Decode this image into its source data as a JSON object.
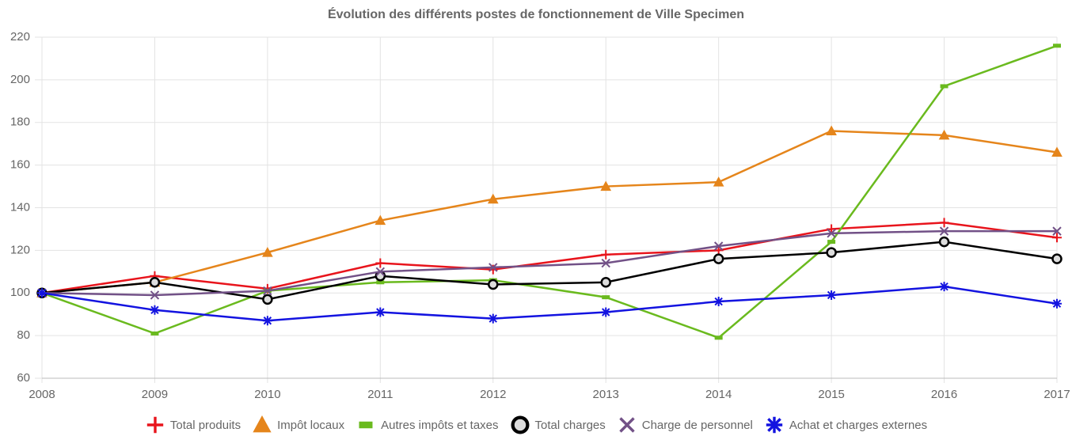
{
  "chart_data": {
    "type": "line",
    "title": "Évolution des différents postes de fonctionnement de Ville Specimen",
    "x": [
      2008,
      2009,
      2010,
      2011,
      2012,
      2013,
      2014,
      2015,
      2016,
      2017
    ],
    "xlim": [
      2008,
      2017
    ],
    "xticks": [
      2008,
      2009,
      2010,
      2011,
      2012,
      2013,
      2014,
      2015,
      2016,
      2017
    ],
    "ylim": [
      60,
      220
    ],
    "yticks": [
      60,
      80,
      100,
      120,
      140,
      160,
      180,
      200,
      220
    ],
    "grid": true,
    "legend": "bottom",
    "series": [
      {
        "name": "Total produits",
        "color": "#e8141c",
        "marker": "cross",
        "values": [
          100,
          108,
          102,
          114,
          111,
          118,
          120,
          130,
          133,
          126
        ]
      },
      {
        "name": "Impôt locaux",
        "color": "#e5851b",
        "marker": "triangle",
        "values": [
          100,
          105,
          119,
          134,
          144,
          150,
          152,
          176,
          174,
          166
        ]
      },
      {
        "name": "Autres impôts et taxes",
        "color": "#6aba1e",
        "marker": "dash",
        "values": [
          100,
          81,
          101,
          105,
          106,
          98,
          79,
          124,
          197,
          216
        ]
      },
      {
        "name": "Total charges",
        "color": "#000000",
        "marker": "circle",
        "values": [
          100,
          105,
          97,
          108,
          104,
          105,
          116,
          119,
          124,
          116
        ]
      },
      {
        "name": "Charge de personnel",
        "color": "#725187",
        "marker": "x",
        "values": [
          100,
          99,
          101,
          110,
          112,
          114,
          122,
          128,
          129,
          129
        ]
      },
      {
        "name": "Achat et charges externes",
        "color": "#1313e0",
        "marker": "star",
        "values": [
          100,
          92,
          87,
          91,
          88,
          91,
          96,
          99,
          103,
          95
        ]
      }
    ]
  }
}
